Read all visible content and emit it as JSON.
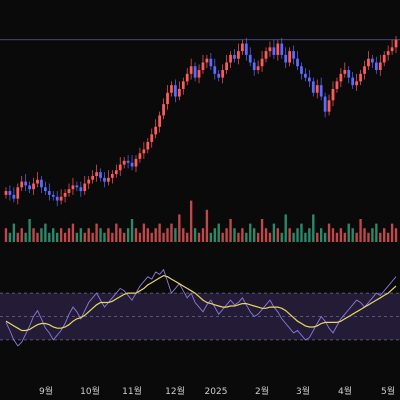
{
  "chart_data": {
    "type": "candlestick",
    "price_panel": {
      "series": [
        {
          "name": "",
          "values": [
            78,
            76,
            74,
            80,
            83,
            81,
            79,
            82,
            84,
            80,
            78,
            76,
            75,
            73,
            75,
            77,
            79,
            81,
            80,
            78,
            82,
            84,
            86,
            88,
            85,
            83,
            85,
            87,
            89,
            92,
            94,
            93,
            91,
            95,
            98,
            100,
            104,
            108,
            112,
            118,
            124,
            130,
            134,
            128,
            132,
            136,
            140,
            144,
            138,
            142,
            146,
            148,
            144,
            140,
            138,
            142,
            146,
            150,
            148,
            152,
            156,
            150,
            146,
            142,
            144,
            148,
            152,
            154,
            150,
            156,
            150,
            146,
            152,
            148,
            144,
            140,
            138,
            136,
            130,
            134,
            128,
            120,
            126,
            132,
            136,
            140,
            142,
            138,
            134,
            136,
            140,
            144,
            148,
            146,
            142,
            146,
            150,
            152,
            154,
            158
          ]
        }
      ],
      "reference_line": 158
    },
    "volume_panel": {
      "series": [
        {
          "name": "",
          "values": [
            3,
            2,
            4,
            2,
            3,
            2,
            5,
            3,
            2,
            3,
            4,
            2,
            3,
            2,
            3,
            2,
            3,
            4,
            2,
            3,
            2,
            3,
            2,
            4,
            3,
            2,
            3,
            2,
            4,
            3,
            2,
            3,
            5,
            3,
            2,
            4,
            3,
            2,
            3,
            4,
            2,
            3,
            4,
            3,
            6,
            3,
            2,
            9,
            3,
            2,
            3,
            7,
            2,
            3,
            4,
            2,
            3,
            5,
            3,
            2,
            3,
            2,
            4,
            3,
            2,
            5,
            3,
            2,
            4,
            3,
            2,
            6,
            3,
            2,
            3,
            4,
            2,
            3,
            6,
            2,
            3,
            2,
            4,
            3,
            2,
            3,
            2,
            4,
            3,
            2,
            5,
            3,
            2,
            3,
            4,
            2,
            3,
            2,
            4,
            3
          ]
        }
      ]
    },
    "oscillator_panel": {
      "series": [
        {
          "name": "",
          "values": [
            45,
            38,
            30,
            25,
            28,
            35,
            42,
            50,
            55,
            48,
            40,
            36,
            30,
            34,
            38,
            44,
            52,
            58,
            54,
            48,
            55,
            62,
            66,
            70,
            64,
            58,
            62,
            66,
            70,
            74,
            72,
            68,
            64,
            70,
            76,
            80,
            84,
            82,
            88,
            86,
            90,
            80,
            70,
            74,
            78,
            72,
            66,
            70,
            62,
            58,
            54,
            60,
            64,
            58,
            52,
            56,
            60,
            64,
            60,
            62,
            66,
            60,
            54,
            50,
            52,
            56,
            60,
            64,
            58,
            54,
            48,
            44,
            40,
            36,
            38,
            34,
            30,
            32,
            38,
            44,
            50,
            46,
            40,
            36,
            42,
            48,
            52,
            56,
            60,
            64,
            62,
            58,
            62,
            66,
            70,
            68,
            72,
            76,
            80,
            84
          ]
        },
        {
          "name": "",
          "values": [
            46,
            44,
            42,
            40,
            38,
            38,
            39,
            41,
            43,
            44,
            44,
            43,
            41,
            40,
            40,
            41,
            43,
            46,
            48,
            49,
            51,
            54,
            57,
            60,
            62,
            62,
            62,
            63,
            65,
            67,
            69,
            70,
            70,
            70,
            72,
            74,
            77,
            79,
            81,
            83,
            85,
            84,
            82,
            80,
            78,
            76,
            74,
            72,
            70,
            67,
            64,
            62,
            61,
            60,
            59,
            58,
            58,
            59,
            59,
            60,
            61,
            61,
            60,
            59,
            58,
            57,
            57,
            58,
            58,
            58,
            57,
            55,
            52,
            49,
            46,
            44,
            42,
            41,
            41,
            42,
            44,
            45,
            45,
            45,
            45,
            46,
            48,
            50,
            52,
            54,
            56,
            58,
            60,
            62,
            64,
            66,
            68,
            70,
            73,
            76
          ]
        }
      ],
      "ylim": [
        0,
        100
      ],
      "bands": [
        30,
        50,
        70
      ]
    },
    "x_axis": {
      "tick_labels": [
        "9월",
        "10월",
        "11월",
        "12월",
        "2025",
        "2월",
        "3월",
        "4월",
        "5월"
      ]
    }
  },
  "colors": {
    "up": "#ff5b5b",
    "down": "#5b6bff",
    "background": "#0a0a0a",
    "volume_up": "#c04848",
    "volume_down": "#2a8a6a",
    "oscillator": "#8a7adf",
    "signal": "#e8d668",
    "band_fill": "#241c36",
    "band_line": "#6a6a8a",
    "reference": "#5a5aa0"
  }
}
